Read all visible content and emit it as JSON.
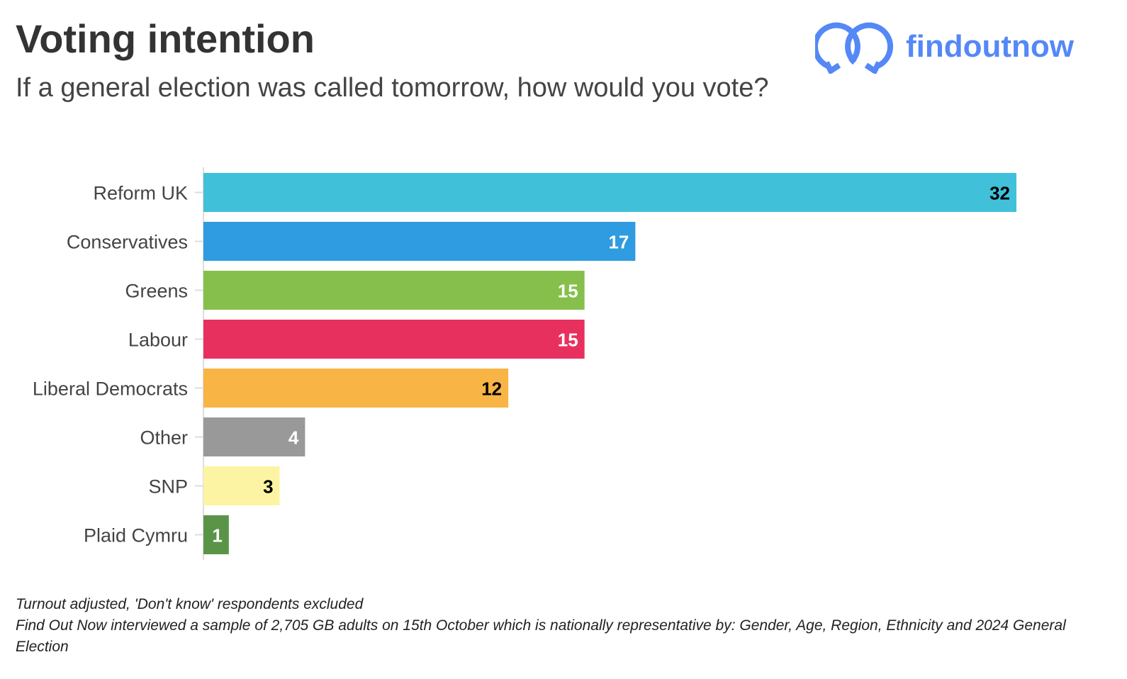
{
  "header": {
    "title": "Voting intention",
    "subtitle": "If a general election was called tomorrow, how would you vote?",
    "logo_text": "findoutnow"
  },
  "chart_data": {
    "type": "bar",
    "orientation": "horizontal",
    "categories": [
      "Reform UK",
      "Conservatives",
      "Greens",
      "Labour",
      "Liberal Democrats",
      "Other",
      "SNP",
      "Plaid Cymru"
    ],
    "values": [
      32,
      17,
      15,
      15,
      12,
      4,
      3,
      1
    ],
    "colors": [
      "#40C1D9",
      "#2F9BE0",
      "#86BF4B",
      "#E8305E",
      "#F8B444",
      "#999999",
      "#FDF4A3",
      "#5A9547"
    ],
    "label_colors": [
      "#000000",
      "#ffffff",
      "#ffffff",
      "#ffffff",
      "#000000",
      "#ffffff",
      "#000000",
      "#ffffff"
    ],
    "xlim": [
      0,
      32
    ],
    "grid": false,
    "data_labels": true
  },
  "notes": [
    "Turnout adjusted, 'Don't know' respondents excluded",
    "Find Out Now interviewed a sample of 2,705 GB adults on 15th October which is nationally representative by: Gender, Age, Region, Ethnicity and 2024 General Election"
  ]
}
